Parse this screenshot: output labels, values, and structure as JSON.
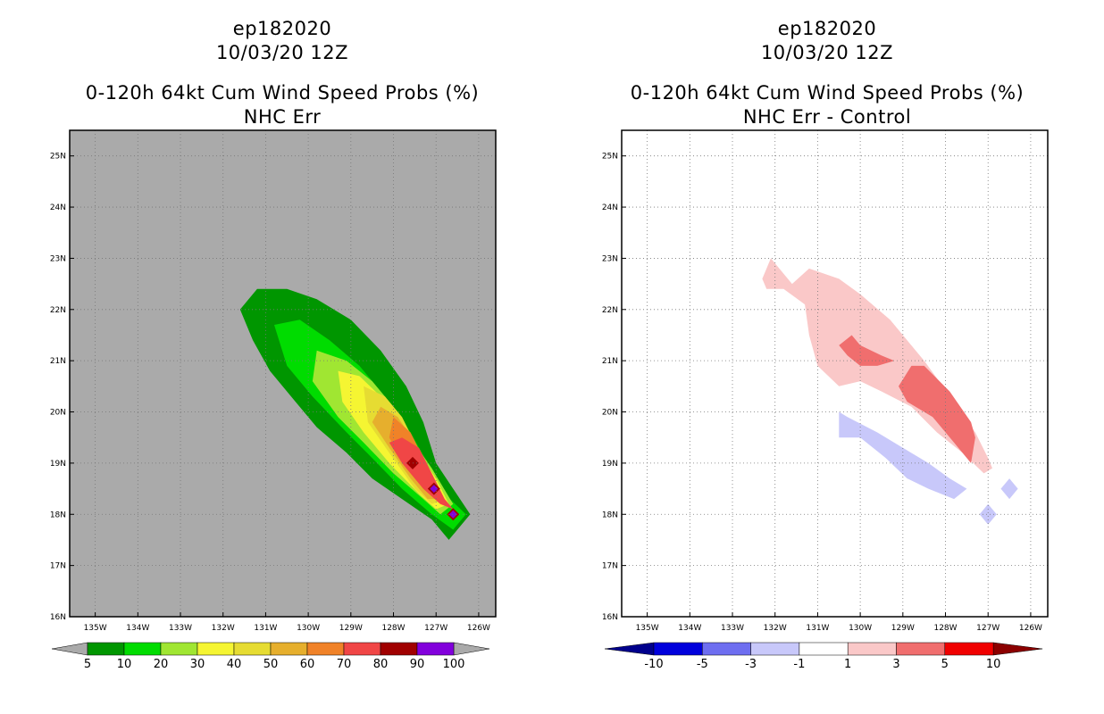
{
  "left": {
    "storm": "ep182020",
    "date": "10/03/20 12Z",
    "title": "0-120h 64kt Cum Wind Speed Probs (%)",
    "subtitle": "NHC Err",
    "background": "#aaaaaa",
    "lat_labels": [
      "25N",
      "24N",
      "23N",
      "22N",
      "21N",
      "20N",
      "19N",
      "18N",
      "17N",
      "16N"
    ],
    "lon_labels": [
      "135W",
      "134W",
      "133W",
      "132W",
      "131W",
      "130W",
      "129W",
      "128W",
      "127W",
      "126W"
    ],
    "colorbar": {
      "labels": [
        "5",
        "10",
        "20",
        "30",
        "40",
        "50",
        "60",
        "70",
        "80",
        "90",
        "100"
      ],
      "colors": [
        "#009600",
        "#00dc00",
        "#a0e632",
        "#f5f532",
        "#e6dc32",
        "#e6af2d",
        "#f08228",
        "#f04646",
        "#a00000",
        "#8200dc"
      ]
    },
    "chart_data": {
      "type": "contour-map",
      "variable": "0-120h 64kt cumulative wind speed probability (%)",
      "levels": [
        5,
        10,
        20,
        30,
        40,
        50,
        60,
        70,
        80,
        90,
        100
      ],
      "xlim_lon": [
        -135.6,
        -125.6
      ],
      "ylim_lat": [
        16,
        25.5
      ],
      "contours": [
        {
          "level": 5,
          "color": "#009600",
          "polygon": [
            [
              -131.6,
              22.0
            ],
            [
              -131.2,
              22.4
            ],
            [
              -130.5,
              22.4
            ],
            [
              -129.8,
              22.2
            ],
            [
              -129.0,
              21.8
            ],
            [
              -128.3,
              21.2
            ],
            [
              -127.7,
              20.5
            ],
            [
              -127.3,
              19.8
            ],
            [
              -127.0,
              19.0
            ],
            [
              -126.6,
              18.5
            ],
            [
              -126.2,
              18.0
            ],
            [
              -126.7,
              17.5
            ],
            [
              -127.1,
              17.9
            ],
            [
              -127.8,
              18.3
            ],
            [
              -128.5,
              18.7
            ],
            [
              -129.1,
              19.2
            ],
            [
              -129.8,
              19.7
            ],
            [
              -130.3,
              20.2
            ],
            [
              -130.9,
              20.8
            ],
            [
              -131.3,
              21.4
            ]
          ]
        },
        {
          "level": 10,
          "color": "#00dc00",
          "polygon": [
            [
              -130.8,
              21.7
            ],
            [
              -130.2,
              21.8
            ],
            [
              -129.5,
              21.4
            ],
            [
              -128.8,
              20.9
            ],
            [
              -128.2,
              20.3
            ],
            [
              -127.6,
              19.6
            ],
            [
              -127.2,
              19.0
            ],
            [
              -126.8,
              18.4
            ],
            [
              -126.3,
              18.0
            ],
            [
              -126.6,
              17.7
            ],
            [
              -127.1,
              18.0
            ],
            [
              -127.8,
              18.5
            ],
            [
              -128.5,
              19.1
            ],
            [
              -129.1,
              19.6
            ],
            [
              -129.9,
              20.3
            ],
            [
              -130.5,
              20.9
            ]
          ]
        },
        {
          "level": 20,
          "color": "#a0e632",
          "polygon": [
            [
              -129.8,
              21.2
            ],
            [
              -129.1,
              21.0
            ],
            [
              -128.5,
              20.6
            ],
            [
              -128.0,
              20.1
            ],
            [
              -127.6,
              19.5
            ],
            [
              -127.1,
              18.9
            ],
            [
              -126.6,
              18.2
            ],
            [
              -126.9,
              18.0
            ],
            [
              -127.3,
              18.3
            ],
            [
              -128.0,
              18.8
            ],
            [
              -128.7,
              19.4
            ],
            [
              -129.3,
              19.9
            ],
            [
              -129.9,
              20.6
            ]
          ]
        },
        {
          "level": 30,
          "color": "#f5f532",
          "polygon": [
            [
              -129.3,
              20.8
            ],
            [
              -128.8,
              20.7
            ],
            [
              -128.3,
              20.3
            ],
            [
              -127.8,
              19.8
            ],
            [
              -127.4,
              19.2
            ],
            [
              -127.0,
              18.7
            ],
            [
              -126.7,
              18.2
            ],
            [
              -127.0,
              18.1
            ],
            [
              -127.4,
              18.4
            ],
            [
              -128.1,
              19.0
            ],
            [
              -128.7,
              19.6
            ],
            [
              -129.2,
              20.2
            ]
          ]
        },
        {
          "level": 40,
          "color": "#e6dc32",
          "polygon": [
            [
              -128.7,
              20.5
            ],
            [
              -128.2,
              20.3
            ],
            [
              -127.8,
              19.9
            ],
            [
              -127.5,
              19.4
            ],
            [
              -127.1,
              18.8
            ],
            [
              -126.8,
              18.3
            ],
            [
              -127.1,
              18.2
            ],
            [
              -127.5,
              18.5
            ],
            [
              -128.1,
              19.2
            ],
            [
              -128.6,
              19.8
            ]
          ]
        },
        {
          "level": 50,
          "color": "#e6af2d",
          "polygon": [
            [
              -128.3,
              20.1
            ],
            [
              -127.9,
              19.9
            ],
            [
              -127.5,
              19.4
            ],
            [
              -127.2,
              18.9
            ],
            [
              -126.9,
              18.3
            ],
            [
              -127.2,
              18.3
            ],
            [
              -127.6,
              18.7
            ],
            [
              -128.1,
              19.3
            ],
            [
              -128.5,
              19.8
            ]
          ]
        },
        {
          "level": 60,
          "color": "#f08228",
          "polygon": [
            [
              -128.0,
              19.9
            ],
            [
              -127.6,
              19.6
            ],
            [
              -127.3,
              19.1
            ],
            [
              -127.0,
              18.6
            ],
            [
              -126.9,
              18.2
            ],
            [
              -127.3,
              18.5
            ],
            [
              -127.7,
              18.9
            ],
            [
              -128.1,
              19.5
            ]
          ]
        },
        {
          "level": 70,
          "color": "#f04646",
          "polygon": [
            [
              -127.8,
              19.5
            ],
            [
              -127.4,
              19.3
            ],
            [
              -127.1,
              18.8
            ],
            [
              -126.8,
              18.3
            ],
            [
              -126.6,
              18.1
            ],
            [
              -126.9,
              18.2
            ],
            [
              -127.3,
              18.5
            ],
            [
              -127.8,
              19.0
            ],
            [
              -128.1,
              19.4
            ]
          ]
        },
        {
          "level": 80,
          "color": "#a00000",
          "markers": [
            [
              -127.55,
              19.0
            ],
            [
              -127.05,
              18.5
            ],
            [
              -126.6,
              18.0
            ]
          ]
        },
        {
          "level": 90,
          "color": "#8200dc",
          "markers": [
            [
              -127.05,
              18.5
            ],
            [
              -126.6,
              18.0
            ]
          ]
        }
      ]
    }
  },
  "right": {
    "storm": "ep182020",
    "date": "10/03/20 12Z",
    "title": "0-120h 64kt Cum Wind Speed Probs (%)",
    "subtitle": "NHC Err - Control",
    "background": "#ffffff",
    "lat_labels": [
      "25N",
      "24N",
      "23N",
      "22N",
      "21N",
      "20N",
      "19N",
      "18N",
      "17N",
      "16N"
    ],
    "lon_labels": [
      "135W",
      "134W",
      "133W",
      "132W",
      "131W",
      "130W",
      "129W",
      "128W",
      "127W",
      "126W"
    ],
    "colorbar": {
      "labels": [
        "-10",
        "-5",
        "-3",
        "-1",
        "1",
        "3",
        "5",
        "10"
      ],
      "colors": [
        "#0000dc",
        "#6e6ef0",
        "#c8c8fa",
        "#ffffff",
        "#fac8c8",
        "#f06e6e",
        "#f00000"
      ],
      "low_arrow": "#00008c",
      "high_arrow": "#8c0000"
    },
    "chart_data": {
      "type": "contour-map",
      "variable": "difference NHC Err minus Control (%)",
      "levels": [
        -10,
        -5,
        -3,
        -1,
        1,
        3,
        5,
        10
      ],
      "xlim_lon": [
        -135.6,
        -125.6
      ],
      "ylim_lat": [
        16,
        25.5
      ],
      "contours": [
        {
          "level": 1,
          "color": "#fac8c8",
          "polygon": [
            [
              -132.1,
              23.0
            ],
            [
              -131.9,
              22.8
            ],
            [
              -131.6,
              22.5
            ],
            [
              -131.2,
              22.8
            ],
            [
              -130.5,
              22.6
            ],
            [
              -130.0,
              22.3
            ],
            [
              -129.3,
              21.8
            ],
            [
              -128.5,
              21.0
            ],
            [
              -127.8,
              20.2
            ],
            [
              -127.3,
              19.6
            ],
            [
              -127.0,
              19.1
            ],
            [
              -126.9,
              18.9
            ],
            [
              -127.1,
              18.8
            ],
            [
              -127.6,
              19.2
            ],
            [
              -128.2,
              19.6
            ],
            [
              -128.8,
              20.1
            ],
            [
              -129.5,
              20.4
            ],
            [
              -130.0,
              20.6
            ],
            [
              -130.5,
              20.5
            ],
            [
              -131.0,
              20.9
            ],
            [
              -131.2,
              21.5
            ],
            [
              -131.3,
              22.1
            ],
            [
              -131.8,
              22.4
            ],
            [
              -132.2,
              22.4
            ],
            [
              -132.3,
              22.6
            ]
          ]
        },
        {
          "level": 3,
          "color": "#f06e6e",
          "polygon": [
            [
              -130.5,
              21.3
            ],
            [
              -130.2,
              21.5
            ],
            [
              -130.0,
              21.3
            ],
            [
              -129.5,
              21.1
            ],
            [
              -129.2,
              21.0
            ],
            [
              -129.6,
              20.9
            ],
            [
              -130.0,
              20.9
            ],
            [
              -130.3,
              21.1
            ]
          ]
        },
        {
          "level": 3,
          "color": "#f06e6e",
          "polygon": [
            [
              -128.8,
              20.9
            ],
            [
              -128.5,
              20.9
            ],
            [
              -127.9,
              20.4
            ],
            [
              -127.4,
              19.8
            ],
            [
              -127.3,
              19.5
            ],
            [
              -127.4,
              19.0
            ],
            [
              -127.8,
              19.4
            ],
            [
              -128.3,
              19.9
            ],
            [
              -128.9,
              20.2
            ],
            [
              -129.1,
              20.5
            ]
          ]
        },
        {
          "level": -1,
          "color": "#c8c8fa",
          "polygon": [
            [
              -130.5,
              20.0
            ],
            [
              -130.3,
              19.9
            ],
            [
              -129.6,
              19.6
            ],
            [
              -129.0,
              19.3
            ],
            [
              -128.4,
              19.0
            ],
            [
              -127.9,
              18.7
            ],
            [
              -127.5,
              18.5
            ],
            [
              -127.8,
              18.3
            ],
            [
              -128.4,
              18.5
            ],
            [
              -128.9,
              18.7
            ],
            [
              -129.4,
              19.1
            ],
            [
              -130.0,
              19.5
            ],
            [
              -130.4,
              19.5
            ],
            [
              -130.5,
              19.5
            ]
          ]
        },
        {
          "level": -1,
          "color": "#c8c8fa",
          "polygon": [
            [
              -126.5,
              18.7
            ],
            [
              -126.3,
              18.5
            ],
            [
              -126.5,
              18.3
            ],
            [
              -126.7,
              18.5
            ]
          ]
        },
        {
          "level": -1,
          "color": "#c8c8fa",
          "polygon": [
            [
              -127.0,
              18.2
            ],
            [
              -126.8,
              18.0
            ],
            [
              -127.0,
              17.8
            ],
            [
              -127.2,
              18.0
            ]
          ]
        }
      ]
    }
  }
}
